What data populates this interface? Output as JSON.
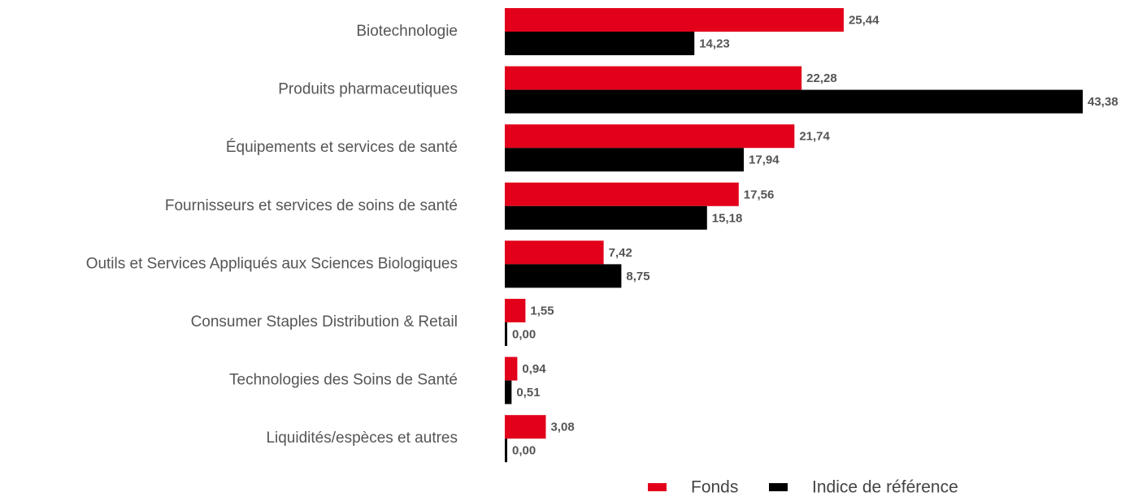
{
  "chart_data": {
    "type": "bar",
    "orientation": "horizontal",
    "categories": [
      "Biotechnologie",
      "Produits pharmaceutiques",
      "Équipements et services de santé",
      "Fournisseurs et services de soins de santé",
      "Outils et Services Appliqués aux Sciences Biologiques",
      "Consumer Staples Distribution & Retail",
      "Technologies des Soins de Santé",
      "Liquidités/espèces et autres"
    ],
    "series": [
      {
        "name": "Fonds",
        "color": "#e2001a",
        "values": [
          25.44,
          22.28,
          21.74,
          17.56,
          7.42,
          1.55,
          0.94,
          3.08
        ],
        "value_labels": [
          "25,44",
          "22,28",
          "21,74",
          "17,56",
          "7,42",
          "1,55",
          "0,94",
          "3,08"
        ]
      },
      {
        "name": "Indice de référence",
        "color": "#000000",
        "values": [
          14.23,
          43.38,
          17.94,
          15.18,
          8.75,
          0.0,
          0.51,
          0.0
        ],
        "value_labels": [
          "14,23",
          "43,38",
          "17,94",
          "15,18",
          "8,75",
          "0,00",
          "0,51",
          "0,00"
        ]
      }
    ],
    "legend": "bottom"
  }
}
